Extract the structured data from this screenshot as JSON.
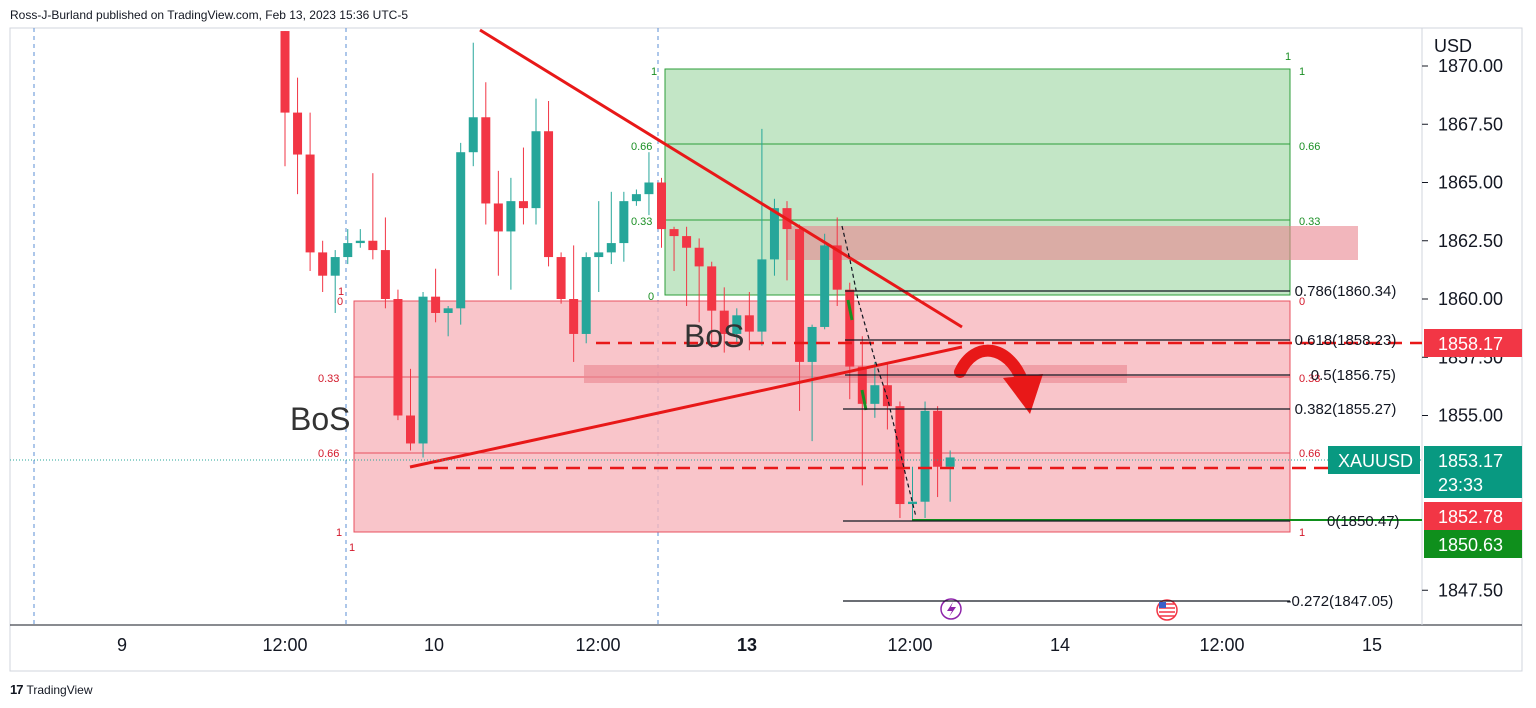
{
  "header": {
    "text": "Ross-J-Burland published on TradingView.com, Feb 13, 2023 15:36 UTC-5"
  },
  "footer": {
    "logo": "17",
    "brand": "TradingView"
  },
  "chart_data": {
    "type": "candlestick",
    "symbol": "XAUUSD",
    "currency": "USD",
    "ylim": [
      1846.0,
      1871.0
    ],
    "y_ticks": [
      "1870.00",
      "1867.50",
      "1865.00",
      "1862.50",
      "1860.00",
      "1857.50",
      "1855.00",
      "1847.50"
    ],
    "x_ticks": [
      {
        "label": "9",
        "bold": false
      },
      {
        "label": "12:00",
        "bold": false
      },
      {
        "label": "10",
        "bold": false
      },
      {
        "label": "12:00",
        "bold": false
      },
      {
        "label": "13",
        "bold": true
      },
      {
        "label": "12:00",
        "bold": false
      },
      {
        "label": "14",
        "bold": false
      },
      {
        "label": "12:00",
        "bold": false
      },
      {
        "label": "15",
        "bold": false
      }
    ],
    "candles": [
      {
        "o": 1871.5,
        "h": 1871.5,
        "l": 1865.7,
        "c": 1868.0
      },
      {
        "o": 1868.0,
        "h": 1869.5,
        "l": 1864.5,
        "c": 1866.2
      },
      {
        "o": 1866.2,
        "h": 1868.0,
        "l": 1861.2,
        "c": 1862.0
      },
      {
        "o": 1862.0,
        "h": 1862.5,
        "l": 1860.3,
        "c": 1861.0
      },
      {
        "o": 1861.0,
        "h": 1862.1,
        "l": 1859.4,
        "c": 1861.8
      },
      {
        "o": 1861.8,
        "h": 1863.0,
        "l": 1861.5,
        "c": 1862.4
      },
      {
        "o": 1862.4,
        "h": 1863.0,
        "l": 1862.2,
        "c": 1862.5
      },
      {
        "o": 1862.5,
        "h": 1865.4,
        "l": 1861.7,
        "c": 1862.1
      },
      {
        "o": 1862.1,
        "h": 1863.5,
        "l": 1859.6,
        "c": 1860.0
      },
      {
        "o": 1860.0,
        "h": 1860.4,
        "l": 1854.8,
        "c": 1855.0
      },
      {
        "o": 1855.0,
        "h": 1857.0,
        "l": 1853.5,
        "c": 1853.8
      },
      {
        "o": 1853.8,
        "h": 1860.3,
        "l": 1853.2,
        "c": 1860.1
      },
      {
        "o": 1860.1,
        "h": 1861.3,
        "l": 1859.0,
        "c": 1859.4
      },
      {
        "o": 1859.4,
        "h": 1859.7,
        "l": 1858.4,
        "c": 1859.6
      },
      {
        "o": 1859.6,
        "h": 1866.7,
        "l": 1858.9,
        "c": 1866.3
      },
      {
        "o": 1866.3,
        "h": 1871.0,
        "l": 1865.7,
        "c": 1867.8
      },
      {
        "o": 1867.8,
        "h": 1869.3,
        "l": 1863.2,
        "c": 1864.1
      },
      {
        "o": 1864.1,
        "h": 1865.5,
        "l": 1861.0,
        "c": 1862.9
      },
      {
        "o": 1862.9,
        "h": 1865.2,
        "l": 1860.4,
        "c": 1864.2
      },
      {
        "o": 1864.2,
        "h": 1866.5,
        "l": 1863.2,
        "c": 1863.9
      },
      {
        "o": 1863.9,
        "h": 1868.6,
        "l": 1863.2,
        "c": 1867.2
      },
      {
        "o": 1867.2,
        "h": 1868.5,
        "l": 1861.4,
        "c": 1861.8
      },
      {
        "o": 1861.8,
        "h": 1862.0,
        "l": 1859.8,
        "c": 1860.0
      },
      {
        "o": 1860.0,
        "h": 1862.3,
        "l": 1857.3,
        "c": 1858.5
      },
      {
        "o": 1858.5,
        "h": 1862.0,
        "l": 1858.1,
        "c": 1861.8
      },
      {
        "o": 1861.8,
        "h": 1864.2,
        "l": 1860.3,
        "c": 1862.0
      },
      {
        "o": 1862.0,
        "h": 1864.6,
        "l": 1861.5,
        "c": 1862.4
      },
      {
        "o": 1862.4,
        "h": 1864.6,
        "l": 1861.6,
        "c": 1864.2
      },
      {
        "o": 1864.2,
        "h": 1864.7,
        "l": 1864.0,
        "c": 1864.5
      },
      {
        "o": 1864.5,
        "h": 1866.3,
        "l": 1863.6,
        "c": 1865.0
      },
      {
        "o": 1865.0,
        "h": 1865.2,
        "l": 1862.2,
        "c": 1863.0
      },
      {
        "o": 1863.0,
        "h": 1863.1,
        "l": 1861.2,
        "c": 1862.7
      },
      {
        "o": 1862.7,
        "h": 1863.1,
        "l": 1859.7,
        "c": 1862.2
      },
      {
        "o": 1862.2,
        "h": 1862.6,
        "l": 1859.0,
        "c": 1861.4
      },
      {
        "o": 1861.4,
        "h": 1861.6,
        "l": 1857.9,
        "c": 1859.5
      },
      {
        "o": 1859.5,
        "h": 1860.5,
        "l": 1857.7,
        "c": 1858.5
      },
      {
        "o": 1858.5,
        "h": 1859.6,
        "l": 1858.1,
        "c": 1859.3
      },
      {
        "o": 1859.3,
        "h": 1860.3,
        "l": 1857.8,
        "c": 1858.6
      },
      {
        "o": 1858.6,
        "h": 1867.3,
        "l": 1858.0,
        "c": 1861.7
      },
      {
        "o": 1861.7,
        "h": 1864.3,
        "l": 1861.0,
        "c": 1863.9
      },
      {
        "o": 1863.9,
        "h": 1864.2,
        "l": 1860.8,
        "c": 1863.0
      },
      {
        "o": 1863.0,
        "h": 1863.2,
        "l": 1855.2,
        "c": 1857.3
      },
      {
        "o": 1857.3,
        "h": 1858.9,
        "l": 1853.9,
        "c": 1858.8
      },
      {
        "o": 1858.8,
        "h": 1862.8,
        "l": 1858.7,
        "c": 1862.3
      },
      {
        "o": 1862.3,
        "h": 1863.5,
        "l": 1859.7,
        "c": 1860.4
      },
      {
        "o": 1860.4,
        "h": 1860.7,
        "l": 1855.7,
        "c": 1857.1
      },
      {
        "o": 1857.1,
        "h": 1858.4,
        "l": 1852.0,
        "c": 1855.5
      },
      {
        "o": 1855.5,
        "h": 1857.3,
        "l": 1854.9,
        "c": 1856.3
      },
      {
        "o": 1856.3,
        "h": 1857.2,
        "l": 1854.4,
        "c": 1855.4
      },
      {
        "o": 1855.4,
        "h": 1855.6,
        "l": 1850.6,
        "c": 1851.2
      },
      {
        "o": 1851.2,
        "h": 1852.8,
        "l": 1850.5,
        "c": 1851.3
      },
      {
        "o": 1851.3,
        "h": 1855.6,
        "l": 1850.6,
        "c": 1855.2
      },
      {
        "o": 1855.2,
        "h": 1855.4,
        "l": 1851.5,
        "c": 1852.8
      },
      {
        "o": 1852.8,
        "h": 1853.5,
        "l": 1851.3,
        "c": 1853.2
      }
    ],
    "fib_retracement": {
      "levels": [
        {
          "ratio": "0.786",
          "price": 1860.34,
          "label": "0.786(1860.34)"
        },
        {
          "ratio": "0.618",
          "price": 1858.23,
          "label": "0.618(1858.23)"
        },
        {
          "ratio": "0.5",
          "price": 1856.75,
          "label": "0.5(1856.75)"
        },
        {
          "ratio": "0.382",
          "price": 1855.27,
          "label": "0.382(1855.27)"
        },
        {
          "ratio": "0",
          "price": 1850.47,
          "label": "0(1850.47)"
        },
        {
          "ratio": "-0.272",
          "price": 1847.05,
          "label": "-0.272(1847.05)"
        }
      ]
    },
    "annotations": {
      "bos": [
        "BoS",
        "BoS"
      ],
      "green_box_levels": [
        "1",
        "0.66",
        "0.33",
        "0",
        "1",
        "0.66",
        "0.33",
        "1"
      ],
      "red_box_levels": [
        "1",
        "0",
        "0.33",
        "0.66",
        "1",
        "0",
        "0.33",
        "0.66",
        "1",
        "1"
      ]
    },
    "price_tags": [
      {
        "label": "",
        "value": "1858.17",
        "color": "#f23645"
      },
      {
        "label": "XAUUSD",
        "value": "1853.17",
        "sub": "23:33",
        "color": "#089981"
      },
      {
        "label": "",
        "value": "1852.78",
        "color": "#f23645"
      },
      {
        "label": "",
        "value": "1850.63",
        "color": "#0f8f1c"
      }
    ],
    "colors": {
      "up": "#26a69a",
      "down": "#f23645",
      "red_zone": "#f7b6bd",
      "green_zone": "#b9e2bc",
      "accent_red": "#e81818"
    }
  }
}
